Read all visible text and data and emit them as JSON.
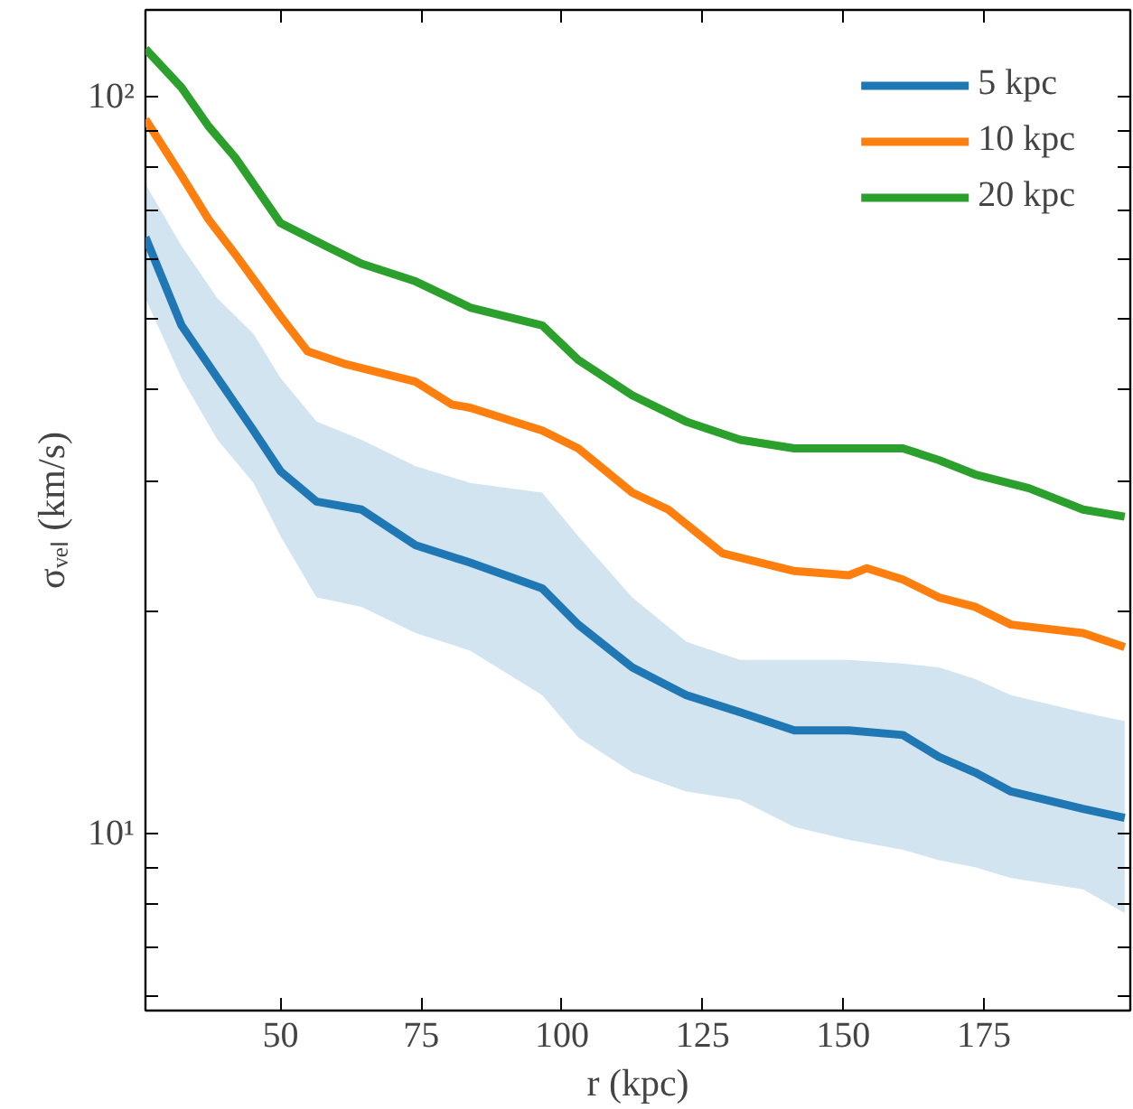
{
  "chart_data": {
    "type": "line",
    "xlabel": "r (kpc)",
    "ylabel": "σᵥₑₗ (km/s)",
    "log": "y",
    "grid": false,
    "legend": "top right",
    "marker": "none",
    "line_style": "solid",
    "xlim": [
      26,
      201
    ],
    "ylim": [
      5.75,
      131
    ],
    "xticks": [
      50,
      75,
      100,
      125,
      150,
      175
    ],
    "yticks": [
      {
        "value": 6,
        "label": null
      },
      {
        "value": 7,
        "label": null
      },
      {
        "value": 8,
        "label": null
      },
      {
        "value": 9,
        "label": null
      },
      {
        "value": 10,
        "label": "10¹"
      },
      {
        "value": 20,
        "label": null
      },
      {
        "value": 30,
        "label": null
      },
      {
        "value": 40,
        "label": null
      },
      {
        "value": 50,
        "label": null
      },
      {
        "value": 60,
        "label": null
      },
      {
        "value": 70,
        "label": null
      },
      {
        "value": 80,
        "label": null
      },
      {
        "value": 90,
        "label": null
      },
      {
        "value": 100,
        "label": "10²"
      }
    ],
    "series": [
      {
        "name": "5 kpc",
        "color": "#1f77b4",
        "x": [
          26.0,
          32.4,
          38.8,
          45.2,
          50,
          56.4,
          64.4,
          74.0,
          83.7,
          96.5,
          102.9,
          112.5,
          122.1,
          131.7,
          141.3,
          151.0,
          160.6,
          167.0,
          173.4,
          179.8,
          192.6,
          200
        ],
        "values": [
          64.4,
          48.9,
          41.5,
          35.2,
          31.0,
          28.2,
          27.5,
          24.6,
          23.3,
          21.5,
          19.2,
          16.8,
          15.4,
          14.6,
          13.8,
          13.8,
          13.6,
          12.7,
          12.1,
          11.4,
          10.8,
          10.5
        ],
        "lower": [
          53.2,
          41.5,
          34.2,
          29.9,
          25.3,
          20.9,
          20.3,
          18.7,
          17.7,
          15.4,
          13.5,
          12.1,
          11.4,
          11.1,
          10.2,
          9.8,
          9.5,
          9.2,
          9.0,
          8.7,
          8.4,
          7.8
        ],
        "upper": [
          76.0,
          62.7,
          53.2,
          47.6,
          41.5,
          36.2,
          34.2,
          31.5,
          29.9,
          29.0,
          25.3,
          20.9,
          18.2,
          17.2,
          17.2,
          17.2,
          17.0,
          16.8,
          16.2,
          15.4,
          14.6,
          14.2
        ]
      },
      {
        "name": "10 kpc",
        "color": "#ff7f0e",
        "x": [
          26.0,
          32.4,
          37.2,
          42.0,
          50,
          54.8,
          61.2,
          74.0,
          80.4,
          83.7,
          96.5,
          102.9,
          112.5,
          118.9,
          128.5,
          141.3,
          151.0,
          154.2,
          160.6,
          167.0,
          173.4,
          179.8,
          192.6,
          200
        ],
        "values": [
          93.1,
          78.1,
          68.1,
          61.0,
          50.3,
          45.1,
          43.4,
          41.0,
          38.2,
          37.8,
          35.2,
          33.3,
          29.0,
          27.5,
          24.0,
          22.7,
          22.4,
          22.9,
          22.1,
          20.9,
          20.3,
          19.2,
          18.7,
          17.9
        ]
      },
      {
        "name": "20 kpc",
        "color": "#2ca02c",
        "x": [
          26.0,
          32.4,
          37.2,
          42.0,
          50,
          58.0,
          64.4,
          74.0,
          83.7,
          96.5,
          102.9,
          112.5,
          122.1,
          131.7,
          141.3,
          151.0,
          160.6,
          167.0,
          173.4,
          183.0,
          192.6,
          200
        ],
        "values": [
          116,
          102.8,
          91.1,
          82.5,
          67.3,
          62.7,
          59.3,
          56.1,
          51.7,
          48.9,
          43.9,
          39.3,
          36.2,
          34.2,
          33.3,
          33.3,
          33.3,
          32.1,
          30.7,
          29.4,
          27.5,
          26.9
        ]
      }
    ]
  }
}
